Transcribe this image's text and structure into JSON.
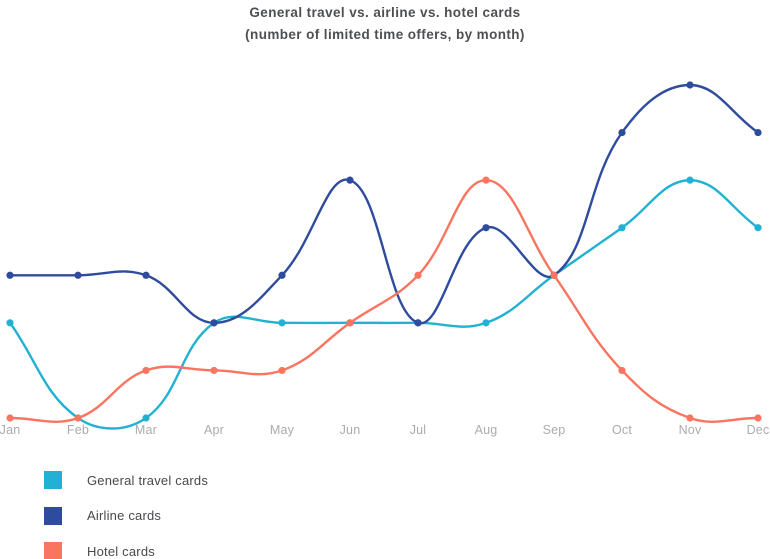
{
  "chart_data": {
    "type": "line",
    "title": "General travel vs. airline vs. hotel cards",
    "subtitle": "(number of limited time offers, by month)",
    "categories": [
      "Jan",
      "Feb",
      "Mar",
      "Apr",
      "May",
      "Jun",
      "Jul",
      "Aug",
      "Sep",
      "Oct",
      "Nov",
      "Dec"
    ],
    "series": [
      {
        "name": "General travel cards",
        "color": "#22b1d2",
        "values": [
          2,
          0,
          0,
          2,
          2,
          2,
          2,
          2,
          3,
          4,
          5,
          4
        ]
      },
      {
        "name": "Airline cards",
        "color": "#2f4b9e",
        "values": [
          3,
          3,
          3,
          2,
          3,
          5,
          2,
          4,
          3,
          6,
          7,
          6
        ]
      },
      {
        "name": "Hotel cards",
        "color": "#fa7560",
        "values": [
          0,
          0,
          1,
          1,
          1,
          2,
          3,
          5,
          3,
          1,
          0,
          0
        ]
      }
    ],
    "ylim": [
      0,
      7
    ],
    "grid": false,
    "legend_position": "bottom-left",
    "curve": "smooth",
    "axis_label_color": "#a9abae",
    "title_color": "#4d4f52"
  }
}
